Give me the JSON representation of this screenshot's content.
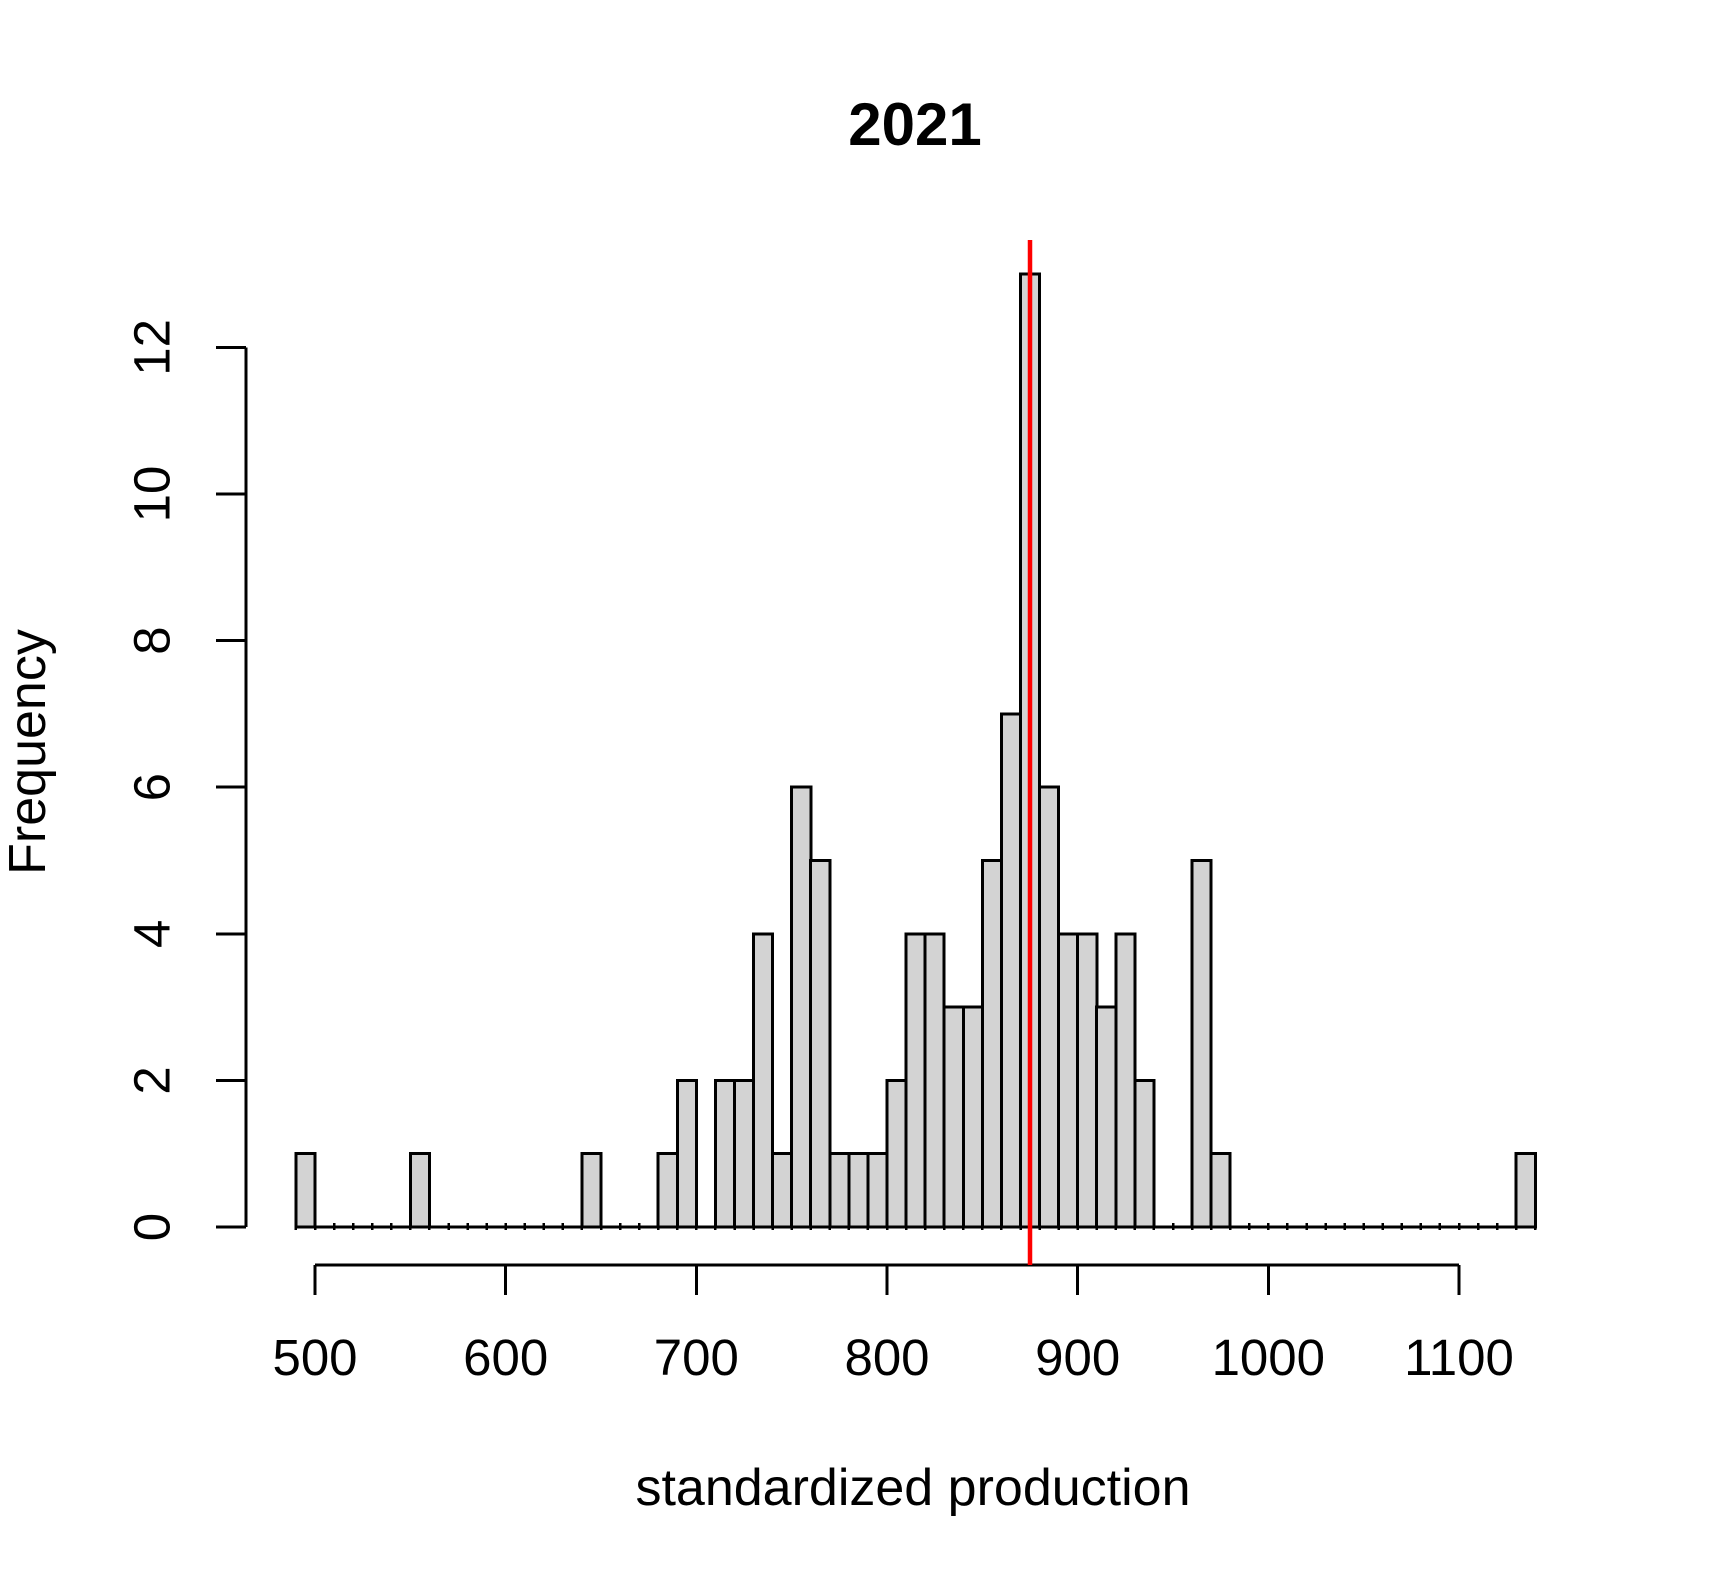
{
  "figure": {
    "background": "#ffffff"
  },
  "chart_data": {
    "type": "bar",
    "subtype": "histogram",
    "title": "2021",
    "xlabel": "standardized production",
    "ylabel": "Frequency",
    "bin_start": 490,
    "bin_width": 10,
    "bin_counts": [
      1,
      0,
      0,
      0,
      0,
      0,
      1,
      0,
      0,
      0,
      0,
      0,
      0,
      0,
      0,
      1,
      0,
      0,
      0,
      1,
      2,
      0,
      2,
      2,
      4,
      1,
      6,
      5,
      1,
      1,
      1,
      2,
      4,
      4,
      3,
      3,
      5,
      7,
      13,
      6,
      4,
      4,
      3,
      4,
      2,
      0,
      0,
      5,
      1,
      0,
      0,
      0,
      0,
      0,
      0,
      0,
      0,
      0,
      0,
      0,
      0,
      0,
      0,
      0,
      1
    ],
    "x_ticks": [
      500,
      600,
      700,
      800,
      900,
      1000,
      1100
    ],
    "y_ticks": [
      0,
      2,
      4,
      6,
      8,
      10,
      12
    ],
    "xlim": [
      490,
      1140
    ],
    "ylim": [
      0,
      13
    ],
    "grid": false,
    "legend": false,
    "bar_fill": "#d3d3d3",
    "bar_stroke": "#000000",
    "axis_color": "#000000",
    "vline": {
      "x": 875,
      "color": "#ff0000"
    }
  }
}
